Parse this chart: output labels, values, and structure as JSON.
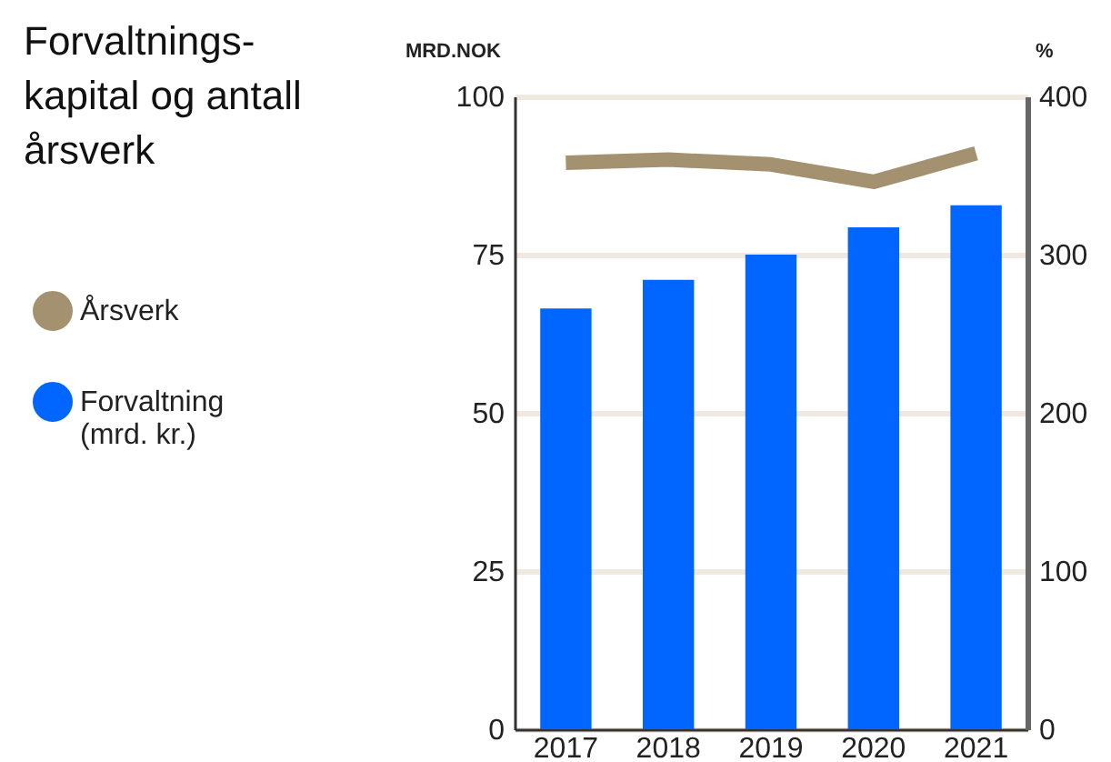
{
  "chart_data": {
    "type": "bar",
    "title": "Forvaltnings-kapital og antall årsverk",
    "categories": [
      "2017",
      "2018",
      "2019",
      "2020",
      "2021"
    ],
    "series": [
      {
        "name": "Årsverk",
        "type": "line",
        "axis": "y2",
        "color": "#a39170",
        "values": [
          358,
          360,
          357,
          346,
          364
        ]
      },
      {
        "name": "Forvaltning (mrd. kr.)",
        "color": "#0066ff",
        "values": [
          66.5,
          71,
          75,
          79.3,
          82.8
        ]
      }
    ],
    "ylabel": "MRD.NOK",
    "y2label": "%",
    "ylim": [
      0,
      100
    ],
    "yticks": [
      0,
      25,
      50,
      75,
      100
    ],
    "y2lim": [
      0,
      400
    ],
    "y2ticks": [
      0,
      100,
      200,
      300,
      400
    ],
    "grid": "y",
    "legend": "left"
  }
}
